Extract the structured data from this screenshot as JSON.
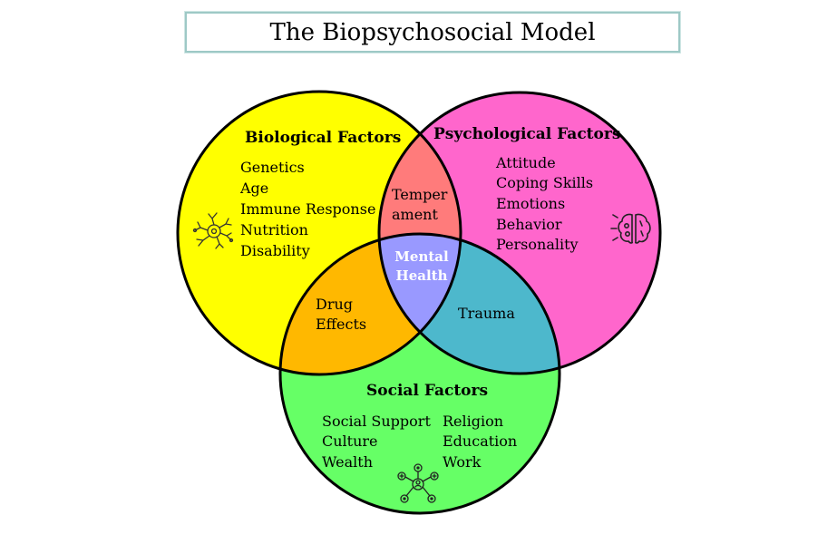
{
  "title": "The Biopsychosocial Model",
  "colors": {
    "biological": "#ffff00",
    "psychological": "#ff66cc",
    "social": "#66ff66",
    "bio_psych": "#ff7b7b",
    "bio_social": "#ffb800",
    "psych_social": "#4db8cc",
    "center": "#9999ff"
  },
  "biological": {
    "heading": "Biological Factors",
    "items": [
      "Genetics",
      "Age",
      "Immune Response",
      "Nutrition",
      "Disability"
    ],
    "icon": "neuron-icon"
  },
  "psychological": {
    "heading": "Psychological Factors",
    "items": [
      "Attitude",
      "Coping Skills",
      "Emotions",
      "Behavior",
      "Personality"
    ],
    "icon": "brain-icon"
  },
  "social": {
    "heading": "Social Factors",
    "items_left": [
      "Social Support",
      "Culture",
      "Wealth"
    ],
    "items_right": [
      "Religion",
      "Education",
      "Work"
    ],
    "icon": "social-network-icon"
  },
  "overlaps": {
    "bio_psych": [
      "Temper",
      "ament"
    ],
    "bio_social": [
      "Drug",
      "Effects"
    ],
    "psych_social": [
      "Trauma"
    ],
    "center": [
      "Mental",
      "Health"
    ]
  }
}
